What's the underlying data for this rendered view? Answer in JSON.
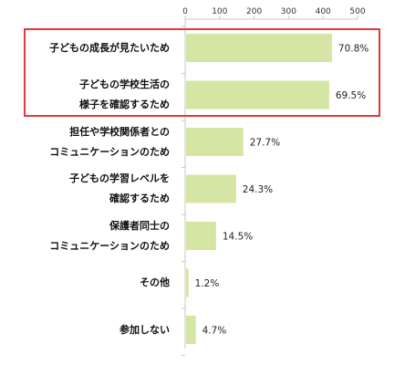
{
  "chart_data": {
    "type": "bar",
    "orientation": "horizontal",
    "categories": [
      [
        "子どもの成長が見たいため"
      ],
      [
        "子どもの学校生活の",
        "様子を確認するため"
      ],
      [
        "担任や学校関係者との",
        "コミュニケーションのため"
      ],
      [
        "子どもの学習レベルを",
        "確認するため"
      ],
      [
        "保護者同士の",
        "コミュニケーションのため"
      ],
      [
        "その他"
      ],
      [
        "参加しない"
      ]
    ],
    "values": [
      423,
      415,
      166,
      145,
      87,
      7,
      28
    ],
    "data_labels": [
      "70.8%",
      "69.5%",
      "27.7%",
      "24.3%",
      "14.5%",
      "1.2%",
      "4.7%"
    ],
    "xlim": [
      0,
      500
    ],
    "ticks": [
      0,
      100,
      200,
      300,
      400,
      500
    ],
    "highlighted": [
      0,
      1
    ],
    "grid": false,
    "colors": {
      "bar": "#d5e5a3",
      "highlight_box": "#e03a3e",
      "axis": "#c8c8c8"
    }
  }
}
